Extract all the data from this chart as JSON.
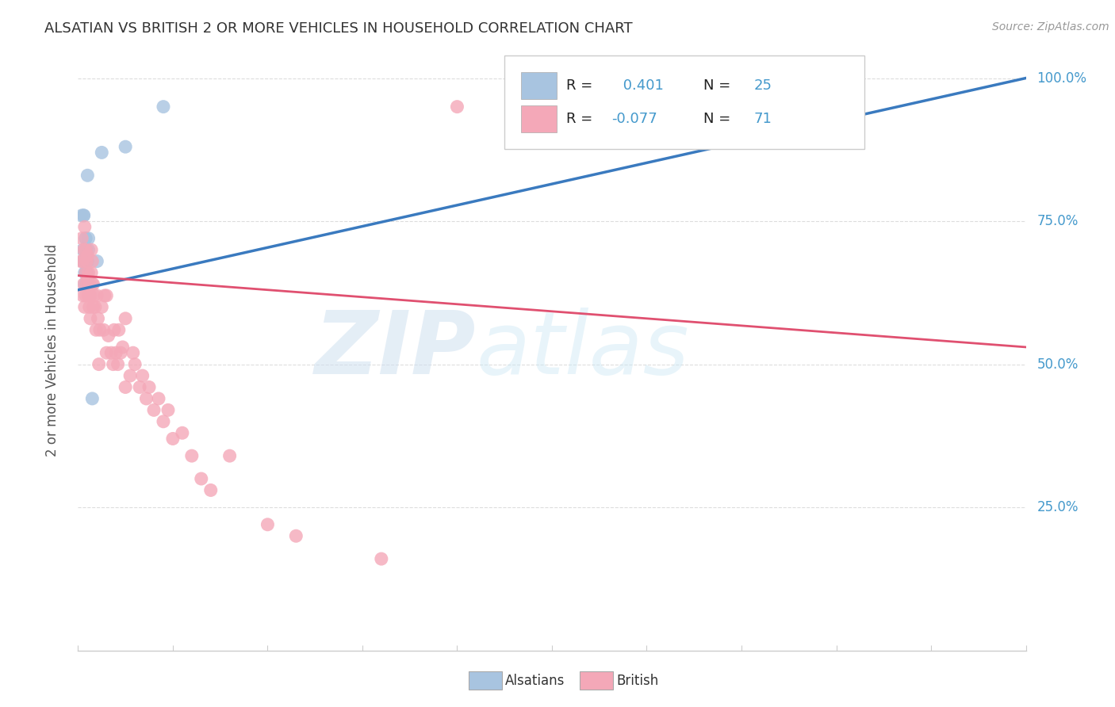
{
  "title": "ALSATIAN VS BRITISH 2 OR MORE VEHICLES IN HOUSEHOLD CORRELATION CHART",
  "source": "Source: ZipAtlas.com",
  "ylabel": "2 or more Vehicles in Household",
  "alsatian_R": 0.401,
  "alsatian_N": 25,
  "british_R": -0.077,
  "british_N": 71,
  "alsatian_color": "#a8c4e0",
  "alsatian_line_color": "#3a7abf",
  "british_color": "#f4a8b8",
  "british_line_color": "#e05070",
  "background_color": "#ffffff",
  "grid_color": "#dddddd",
  "title_color": "#333333",
  "axis_label_color": "#555555",
  "right_ytick_color": "#4499cc",
  "alsatian_x": [
    0.4,
    1.0,
    0.5,
    0.6,
    0.7,
    0.5,
    0.8,
    0.6,
    0.7,
    0.8,
    0.9,
    0.8,
    0.9,
    1.0,
    0.8,
    0.9,
    1.0,
    1.1,
    0.9,
    1.1,
    1.5,
    2.0,
    2.5,
    5.0,
    9.0
  ],
  "alsatian_y": [
    76,
    83,
    70,
    76,
    64,
    68,
    72,
    76,
    66,
    72,
    66,
    70,
    64,
    68,
    66,
    70,
    68,
    72,
    66,
    70,
    44,
    68,
    87,
    88,
    95
  ],
  "british_x": [
    0.3,
    0.4,
    0.5,
    0.5,
    0.6,
    0.6,
    0.7,
    0.7,
    0.8,
    0.8,
    0.8,
    0.9,
    0.9,
    1.0,
    1.0,
    1.1,
    1.1,
    1.2,
    1.2,
    1.3,
    1.3,
    1.4,
    1.4,
    1.5,
    1.5,
    1.6,
    1.6,
    1.7,
    1.8,
    1.9,
    2.0,
    2.1,
    2.2,
    2.3,
    2.5,
    2.7,
    2.8,
    3.0,
    3.0,
    3.2,
    3.5,
    3.7,
    3.8,
    4.0,
    4.2,
    4.3,
    4.5,
    4.7,
    5.0,
    5.0,
    5.5,
    5.8,
    6.0,
    6.5,
    6.8,
    7.2,
    7.5,
    8.0,
    8.5,
    9.0,
    9.5,
    10.0,
    11.0,
    12.0,
    13.0,
    14.0,
    16.0,
    20.0,
    23.0,
    32.0,
    40.0
  ],
  "british_y": [
    68,
    72,
    62,
    68,
    64,
    70,
    60,
    74,
    62,
    66,
    70,
    64,
    68,
    65,
    69,
    62,
    66,
    60,
    64,
    58,
    62,
    66,
    70,
    64,
    68,
    60,
    64,
    62,
    60,
    56,
    62,
    58,
    50,
    56,
    60,
    56,
    62,
    52,
    62,
    55,
    52,
    50,
    56,
    52,
    50,
    56,
    52,
    53,
    46,
    58,
    48,
    52,
    50,
    46,
    48,
    44,
    46,
    42,
    44,
    40,
    42,
    37,
    38,
    34,
    30,
    28,
    34,
    22,
    20,
    16,
    95
  ]
}
